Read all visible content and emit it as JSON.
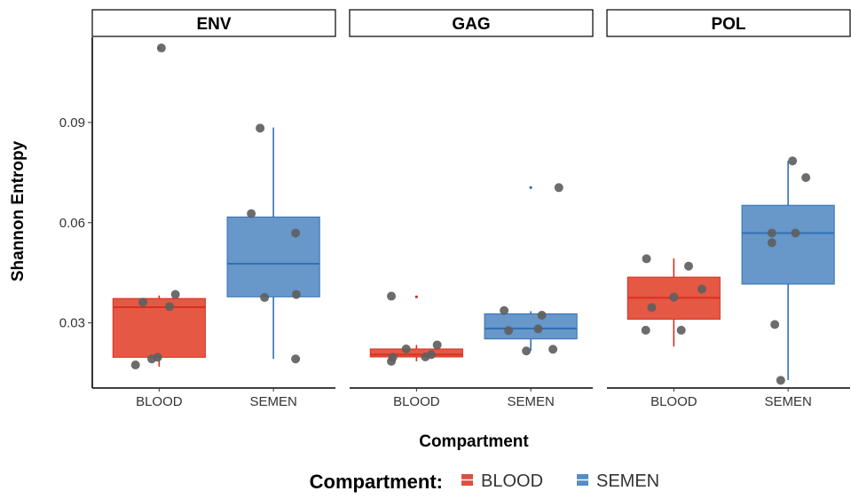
{
  "chart_data": {
    "type": "box",
    "title": "",
    "xlabel": "Compartment",
    "ylabel": "Shannon Entropy",
    "ylim": [
      0.0105,
      0.1155
    ],
    "yticks": [
      0.03,
      0.06,
      0.09
    ],
    "ytick_labels": [
      "0.03",
      "0.06",
      "0.09"
    ],
    "categories": [
      "BLOOD",
      "SEMEN"
    ],
    "legend": {
      "title": "Compartment:",
      "position": "bottom",
      "items": [
        {
          "label": "BLOOD",
          "color": "#d7301f"
        },
        {
          "label": "SEMEN",
          "color": "#3a78bc"
        }
      ]
    },
    "series_colors": {
      "BLOOD": "#e34a33",
      "SEMEN": "#5b8ec6",
      "BLOOD_line": "#d7301f",
      "SEMEN_line": "#2f72b5"
    },
    "point_color": "#5f5f5f",
    "panels": [
      {
        "name": "ENV",
        "boxes": [
          {
            "category": "BLOOD",
            "q1": 0.0197,
            "median": 0.0347,
            "q3": 0.0373,
            "whisker_low": 0.0169,
            "whisker_high": 0.0382,
            "outliers": [
              0.1123
            ],
            "points": [
              [
                -0.32,
                0.0174
              ],
              [
                -0.22,
                0.0362
              ],
              [
                -0.1,
                0.0192
              ],
              [
                -0.02,
                0.0197
              ],
              [
                0.03,
                0.1123
              ],
              [
                0.14,
                0.0349
              ],
              [
                0.22,
                0.0385
              ]
            ]
          },
          {
            "category": "SEMEN",
            "q1": 0.0378,
            "median": 0.0477,
            "q3": 0.0617,
            "whisker_low": 0.0192,
            "whisker_high": 0.0885,
            "outliers": [],
            "points": [
              [
                -0.3,
                0.0627
              ],
              [
                -0.18,
                0.0883
              ],
              [
                -0.12,
                0.0376
              ],
              [
                0.3,
                0.0569
              ],
              [
                0.31,
                0.0385
              ],
              [
                0.3,
                0.0192
              ]
            ]
          }
        ]
      },
      {
        "name": "GAG",
        "boxes": [
          {
            "category": "BLOOD",
            "q1": 0.0198,
            "median": 0.0205,
            "q3": 0.0222,
            "whisker_low": 0.0185,
            "whisker_high": 0.0234,
            "outliers": [
              0.0378
            ],
            "points": [
              [
                -0.34,
                0.038
              ],
              [
                -0.34,
                0.0185
              ],
              [
                -0.32,
                0.0197
              ],
              [
                -0.14,
                0.0222
              ],
              [
                0.12,
                0.0198
              ],
              [
                0.2,
                0.0205
              ],
              [
                0.28,
                0.0234
              ]
            ]
          },
          {
            "category": "SEMEN",
            "q1": 0.0252,
            "median": 0.0283,
            "q3": 0.0327,
            "whisker_low": 0.0216,
            "whisker_high": 0.0335,
            "outliers": [
              0.0705
            ],
            "points": [
              [
                -0.36,
                0.0337
              ],
              [
                -0.3,
                0.0277
              ],
              [
                -0.06,
                0.0216
              ],
              [
                0.1,
                0.0282
              ],
              [
                0.15,
                0.0323
              ],
              [
                0.3,
                0.0221
              ],
              [
                0.38,
                0.0705
              ]
            ]
          }
        ]
      },
      {
        "name": "POL",
        "boxes": [
          {
            "category": "BLOOD",
            "q1": 0.0311,
            "median": 0.0375,
            "q3": 0.0437,
            "whisker_low": 0.0229,
            "whisker_high": 0.0493,
            "outliers": [],
            "points": [
              [
                -0.38,
                0.0278
              ],
              [
                -0.3,
                0.0346
              ],
              [
                -0.37,
                0.0492
              ],
              [
                0.0,
                0.0377
              ],
              [
                0.1,
                0.0278
              ],
              [
                0.2,
                0.047
              ],
              [
                0.38,
                0.0401
              ]
            ]
          },
          {
            "category": "SEMEN",
            "q1": 0.0416,
            "median": 0.0569,
            "q3": 0.0652,
            "whisker_low": 0.0129,
            "whisker_high": 0.0785,
            "outliers": [],
            "points": [
              [
                -0.22,
                0.0569
              ],
              [
                -0.22,
                0.054
              ],
              [
                -0.18,
                0.0295
              ],
              [
                -0.1,
                0.0128
              ],
              [
                0.06,
                0.0785
              ],
              [
                0.1,
                0.0569
              ],
              [
                0.24,
                0.0735
              ]
            ]
          }
        ]
      }
    ]
  }
}
